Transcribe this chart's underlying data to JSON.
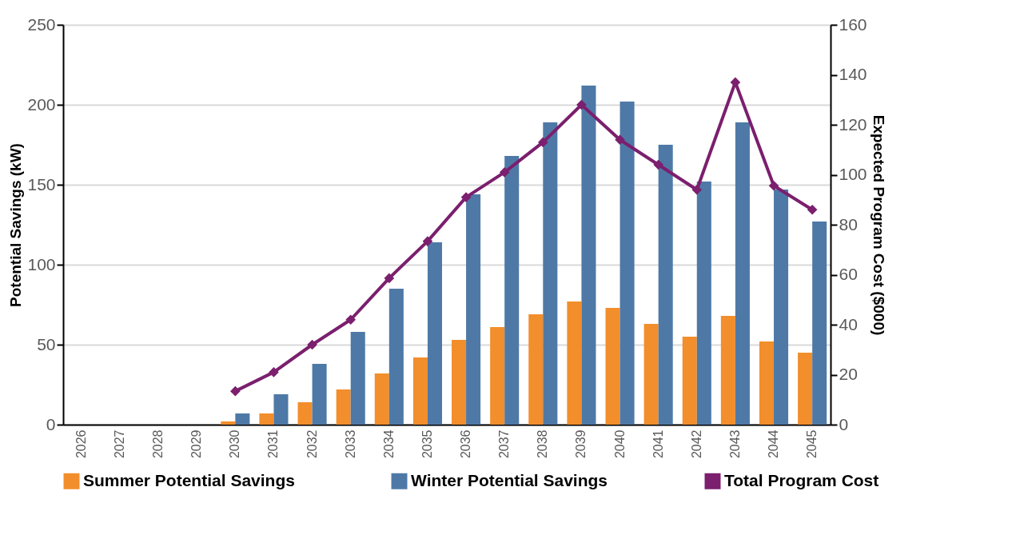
{
  "chart_data": {
    "type": "bar",
    "ylabel": "Potential Savings (kW)",
    "y2label": "Expected Program Cost ($000)",
    "categories": [
      "2026",
      "2027",
      "2028",
      "2029",
      "2030",
      "2031",
      "2032",
      "2033",
      "2034",
      "2035",
      "2036",
      "2037",
      "2038",
      "2039",
      "2040",
      "2041",
      "2042",
      "2043",
      "2044",
      "2045"
    ],
    "series": [
      {
        "name": "Summer Potential Savings",
        "type": "bar",
        "color": "#f28e2b",
        "values": [
          null,
          null,
          null,
          null,
          2,
          7,
          14,
          22,
          32,
          42,
          53,
          61,
          69,
          77,
          73,
          63,
          55,
          68,
          52,
          45
        ]
      },
      {
        "name": "Winter Potential Savings",
        "type": "bar",
        "color": "#4e79a7",
        "values": [
          null,
          null,
          null,
          null,
          7,
          19,
          38,
          58,
          85,
          114,
          144,
          168,
          189,
          212,
          202,
          175,
          152,
          189,
          147,
          127
        ]
      },
      {
        "name": "Total Program Cost",
        "type": "line",
        "axis": "y2",
        "marker": "diamond",
        "color": "#7b1f6e",
        "values": [
          null,
          null,
          null,
          null,
          13.4,
          21,
          32,
          42,
          58.6,
          73.4,
          91,
          101,
          113,
          128,
          114,
          104,
          94,
          137,
          95.6,
          86
        ]
      }
    ],
    "ylim": [
      0,
      250
    ],
    "yticks": [
      0,
      50,
      100,
      150,
      200,
      250
    ],
    "y2lim": [
      0,
      160
    ],
    "y2ticks": [
      0,
      20,
      40,
      60,
      80,
      100,
      120,
      140,
      160
    ],
    "grid": "y",
    "legend": "bottom"
  }
}
